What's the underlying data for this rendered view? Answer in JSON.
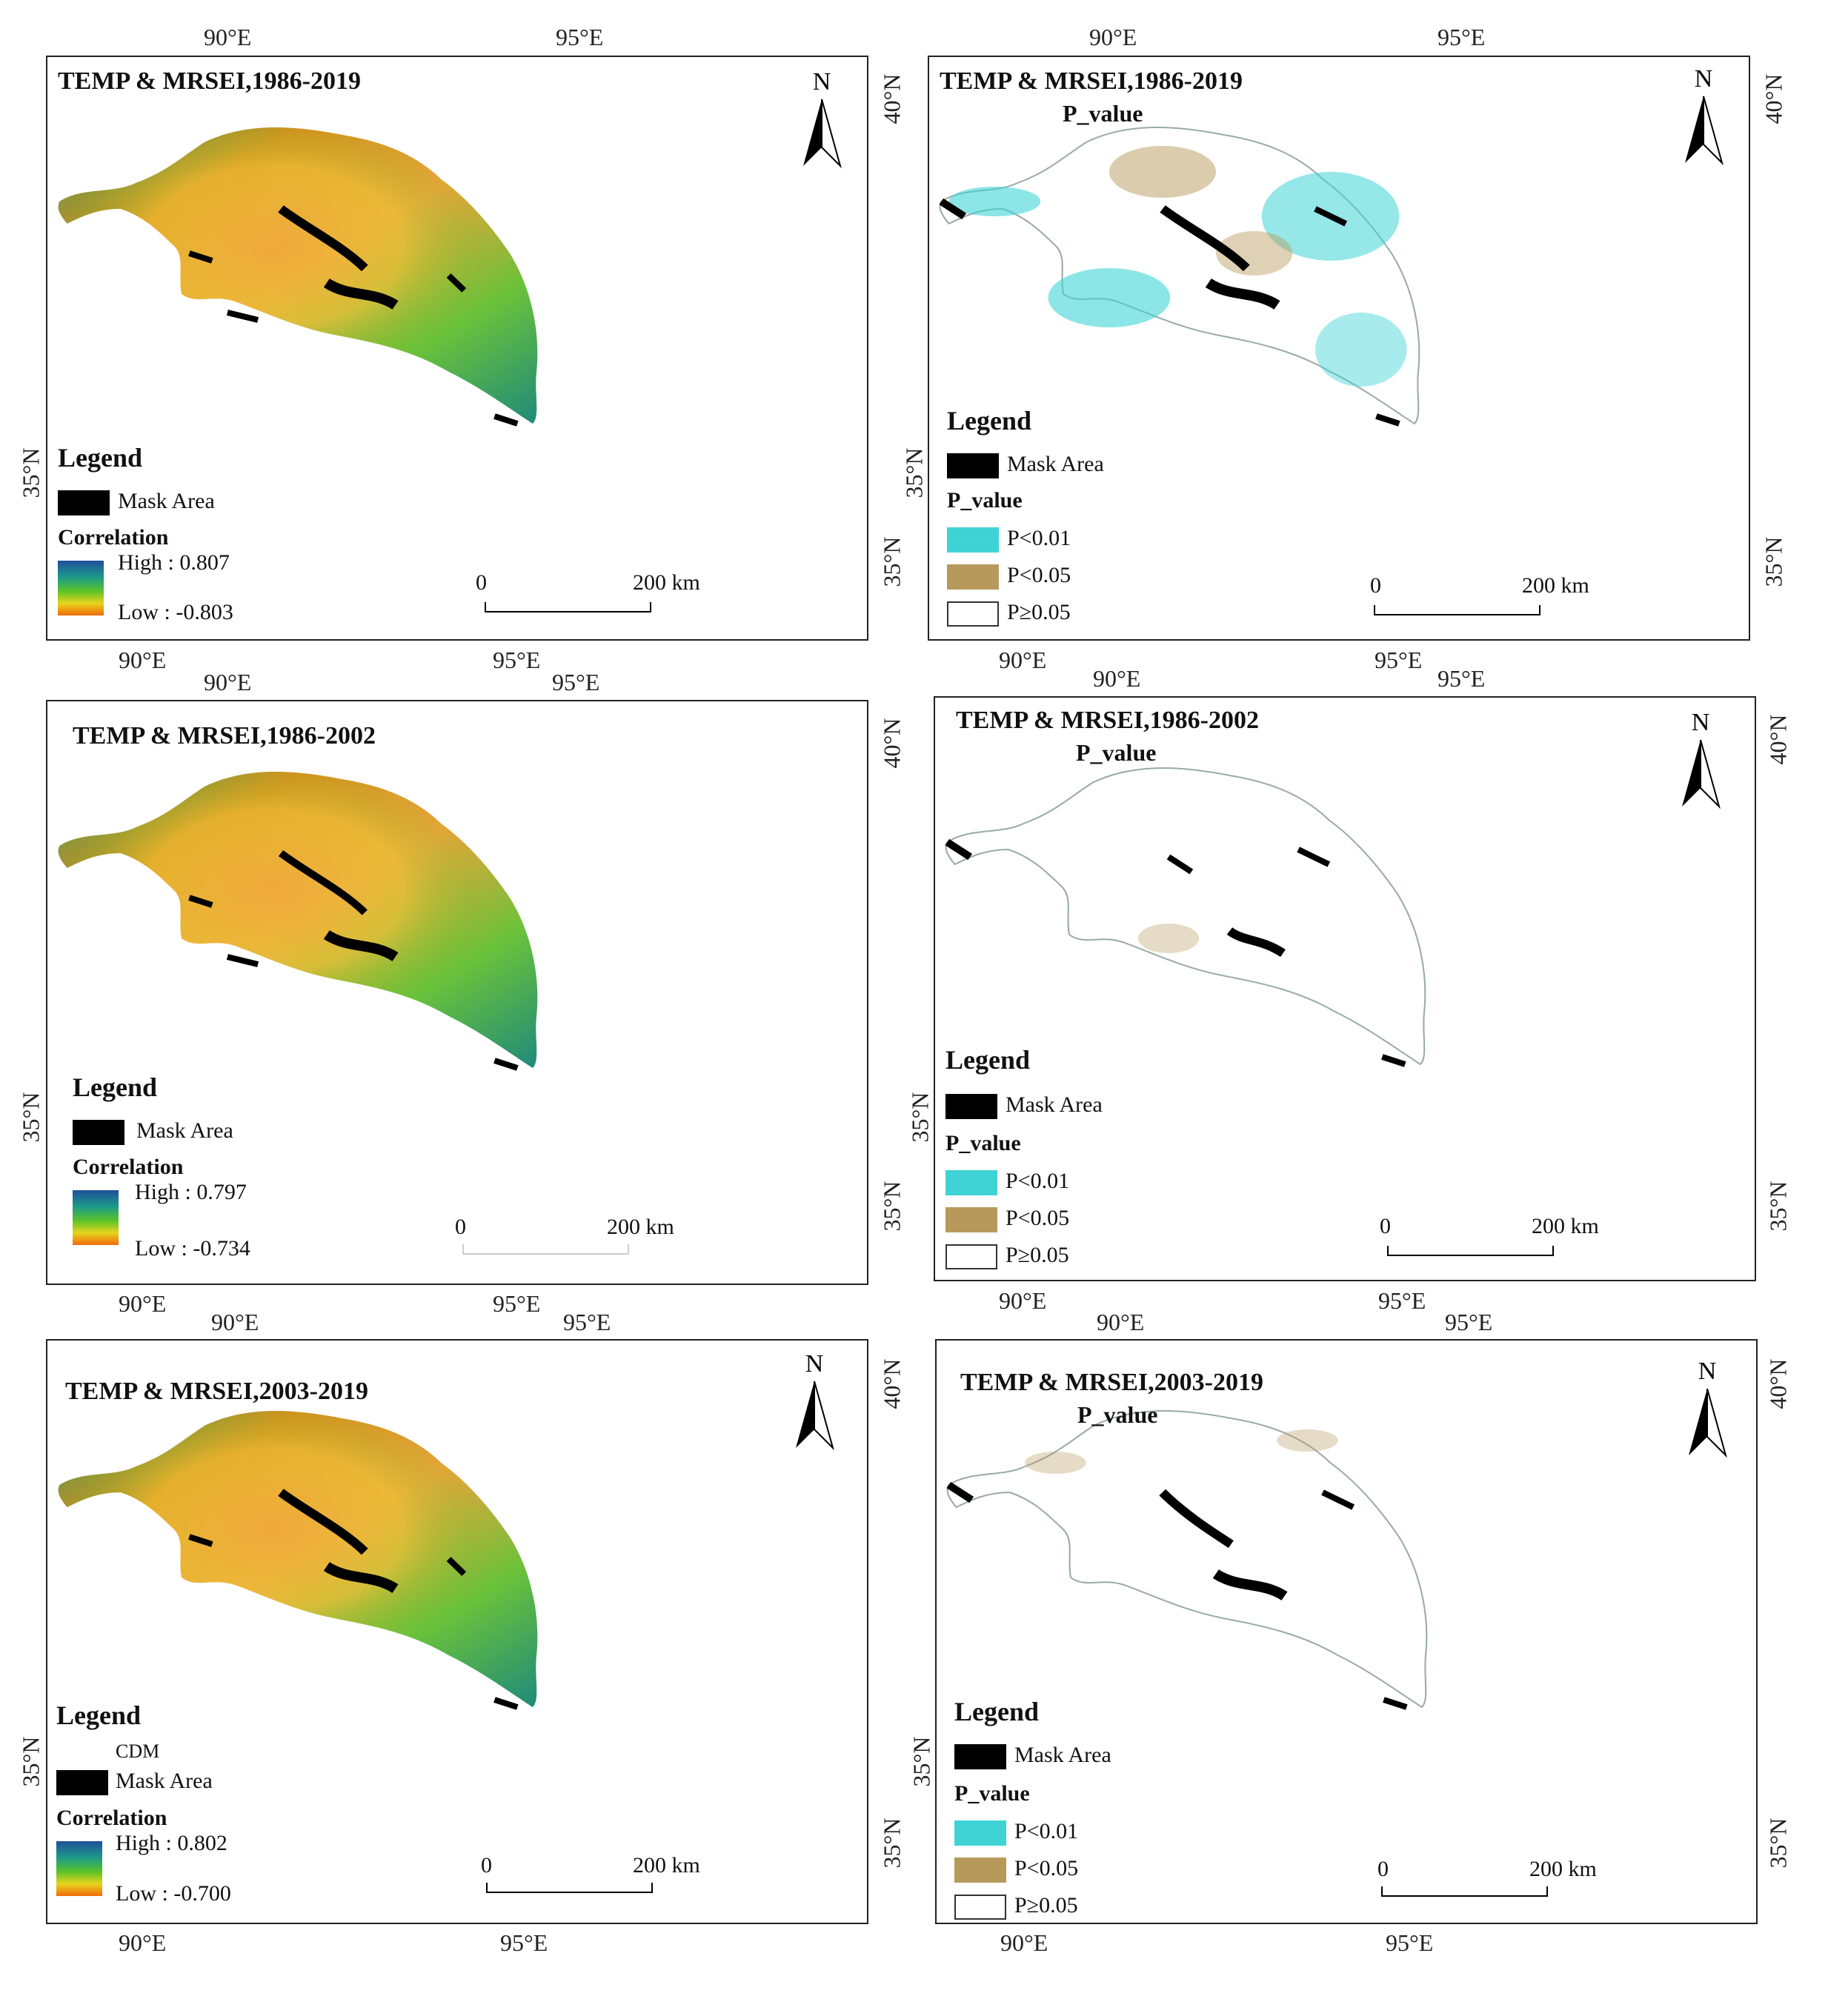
{
  "panels": [
    {
      "title": "TEMP & MRSEI,1986-2019",
      "legend": {
        "heading": "Legend",
        "mask": "Mask Area",
        "corr_title": "Correlation",
        "high": "High : 0.807",
        "low": "Low : -0.803"
      },
      "scale": {
        "zero": "0",
        "dist": "200 km"
      },
      "axes": {
        "top_left": "90°E",
        "top_right": "95°E",
        "bottom_left": "90°E",
        "bottom_right": "95°E",
        "left_lat": "35°N",
        "right_top": "40°N",
        "right_bottom": "35°N"
      }
    },
    {
      "title": "TEMP & MRSEI,1986-2019",
      "subtitle": "P_value",
      "legend": {
        "heading": "Legend",
        "mask": "Mask Area",
        "p_title": "P_value",
        "p1": "P<0.01",
        "p2": "P<0.05",
        "p3": "P≥0.05"
      },
      "scale": {
        "zero": "0",
        "dist": "200 km"
      },
      "axes": {
        "top_left": "90°E",
        "top_right": "95°E",
        "bottom_left": "90°E",
        "bottom_right": "95°E",
        "left_lat": "35°N",
        "right_top": "40°N",
        "right_bottom": "35°N"
      }
    },
    {
      "title": "TEMP & MRSEI,1986-2002",
      "legend": {
        "heading": "Legend",
        "mask": "Mask Area",
        "corr_title": "Correlation",
        "high": "High : 0.797",
        "low": "Low : -0.734"
      },
      "scale": {
        "zero": "0",
        "dist": "200 km"
      },
      "axes": {
        "top_left": "90°E",
        "top_right": "95°E",
        "bottom_left": "90°E",
        "bottom_right": "95°E",
        "left_lat": "35°N",
        "right_top": "40°N",
        "right_bottom": "35°N"
      }
    },
    {
      "title": "TEMP & MRSEI,1986-2002",
      "subtitle": "P_value",
      "legend": {
        "heading": "Legend",
        "mask": "Mask Area",
        "p_title": "P_value",
        "p1": "P<0.01",
        "p2": "P<0.05",
        "p3": "P≥0.05"
      },
      "scale": {
        "zero": "0",
        "dist": "200 km"
      },
      "axes": {
        "top_left": "90°E",
        "top_right": "95°E",
        "bottom_left": "90°E",
        "bottom_right": "95°E",
        "left_lat": "35°N",
        "right_top": "40°N",
        "right_bottom": "35°N"
      }
    },
    {
      "title": "TEMP & MRSEI,2003-2019",
      "legend": {
        "heading": "Legend",
        "extra": "CDM",
        "mask": "Mask Area",
        "corr_title": "Correlation",
        "high": "High : 0.802",
        "low": "Low : -0.700"
      },
      "scale": {
        "zero": "0",
        "dist": "200 km"
      },
      "axes": {
        "top_left": "90°E",
        "top_right": "95°E",
        "bottom_left": "90°E",
        "bottom_right": "95°E",
        "left_lat": "35°N",
        "right_top": "40°N",
        "right_bottom": "35°N"
      }
    },
    {
      "title": "TEMP & MRSEI,2003-2019",
      "subtitle": "P_value",
      "legend": {
        "heading": "Legend",
        "mask": "Mask Area",
        "p_title": "P_value",
        "p1": "P<0.01",
        "p2": "P<0.05",
        "p3": "P≥0.05"
      },
      "scale": {
        "zero": "0",
        "dist": "200 km"
      },
      "axes": {
        "top_left": "90°E",
        "top_right": "95°E",
        "bottom_left": "90°E",
        "bottom_right": "95°E",
        "left_lat": "35°N",
        "right_top": "40°N",
        "right_bottom": "35°N"
      }
    }
  ],
  "north_label": "N",
  "colors": {
    "mask": "#000000",
    "p001": "#3fd3d6",
    "p005": "#b8995c",
    "p_ns": "#ffffff",
    "corr_high": "#1f4f9a",
    "corr_mid": "#58c22a",
    "corr_low": "#f06a0a"
  }
}
